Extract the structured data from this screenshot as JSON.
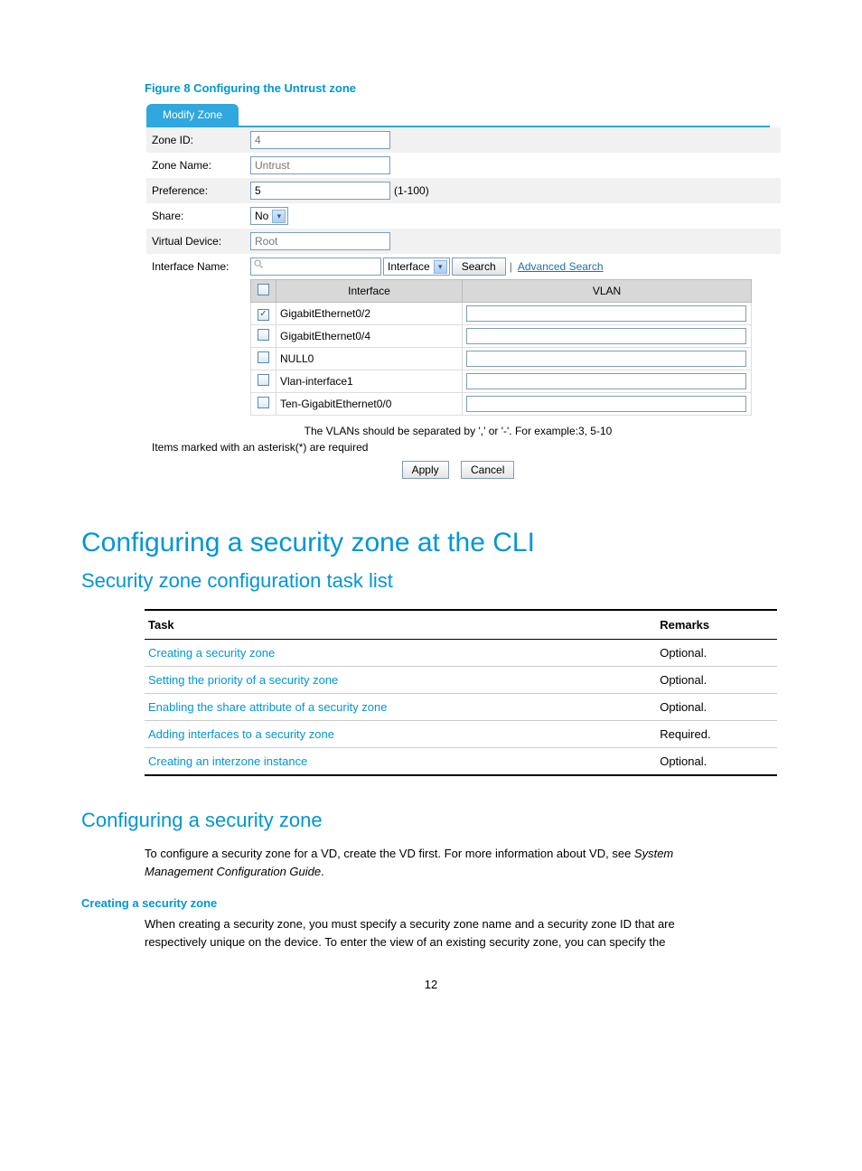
{
  "figure_caption": "Figure 8 Configuring the Untrust zone",
  "form": {
    "tab_label": "Modify Zone",
    "fields": {
      "zone_id": {
        "label": "Zone ID:",
        "value": "4"
      },
      "zone_name": {
        "label": "Zone Name:",
        "value": "Untrust"
      },
      "preference": {
        "label": "Preference:",
        "value": "5",
        "range": "(1-100)"
      },
      "share": {
        "label": "Share:",
        "value": "No"
      },
      "virtual_device": {
        "label": "Virtual Device:",
        "value": "Root"
      },
      "interface_name": {
        "label": "Interface Name:"
      }
    },
    "search": {
      "value": "",
      "dropdown": "Interface",
      "button": "Search",
      "advanced": "Advanced Search"
    },
    "iface_table": {
      "columns": {
        "interface": "Interface",
        "vlan": "VLAN"
      },
      "rows": [
        {
          "checked": true,
          "iface": "GigabitEthernet0/2"
        },
        {
          "checked": false,
          "iface": "GigabitEthernet0/4"
        },
        {
          "checked": false,
          "iface": "NULL0"
        },
        {
          "checked": false,
          "iface": "Vlan-interface1"
        },
        {
          "checked": false,
          "iface": "Ten-GigabitEthernet0/0"
        }
      ]
    },
    "vlan_note": "The VLANs should be separated by ',' or '-'. For example:3, 5-10",
    "required_note": "Items marked with an asterisk(*) are required",
    "apply_label": "Apply",
    "cancel_label": "Cancel"
  },
  "heading1": "Configuring a security zone at the CLI",
  "heading2": "Security zone configuration task list",
  "task_table": {
    "columns": {
      "task": "Task",
      "remarks": "Remarks"
    },
    "rows": [
      {
        "task": "Creating a security zone",
        "remarks": "Optional."
      },
      {
        "task": "Setting the priority of a security zone",
        "remarks": "Optional."
      },
      {
        "task": "Enabling the share attribute of a security zone",
        "remarks": "Optional."
      },
      {
        "task": "Adding interfaces to a security zone",
        "remarks": "Required."
      },
      {
        "task": "Creating an interzone instance",
        "remarks": "Optional."
      }
    ]
  },
  "heading2b": "Configuring a security zone",
  "para1_pre": "To configure a security zone for a VD, create the VD first. For more information about VD, see ",
  "para1_italic": "System Management Configuration Guide",
  "heading3": "Creating a security zone",
  "para2": "When creating a security zone, you must specify a security zone name and a security zone ID that are respectively unique on the device. To enter the view of an existing security zone, you can specify the",
  "page_number": "12"
}
